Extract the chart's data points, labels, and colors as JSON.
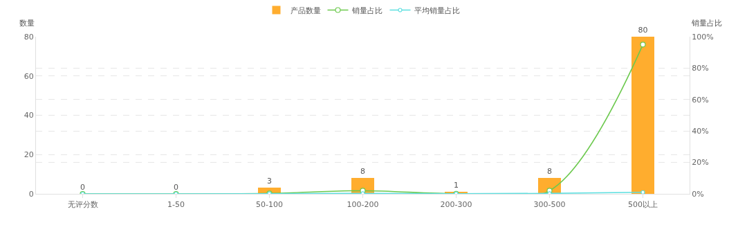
{
  "chart_data": {
    "type": "bar",
    "ylabel": "数量",
    "y2label": "销量占比",
    "categories": [
      "无评分数",
      "1-50",
      "50-100",
      "100-200",
      "200-300",
      "300-500",
      "500以上"
    ],
    "series": [
      {
        "name": "产品数量",
        "color": "#ffad2e",
        "values": [
          0,
          0,
          3,
          8,
          1,
          8,
          80
        ],
        "value_labels": [
          "0",
          "0",
          "3",
          "8",
          "1",
          "8",
          "80"
        ]
      },
      {
        "name": "销量占比",
        "type": "line",
        "axis": "y2",
        "color": "#6cc94e",
        "marker": "circle",
        "values": [
          0,
          0,
          0.3,
          2,
          0.1,
          2,
          95
        ]
      },
      {
        "name": "平均销量占比",
        "type": "line",
        "axis": "y2",
        "color": "#5ddfe0",
        "marker": "circle",
        "values": [
          0,
          0,
          0.1,
          0.3,
          0.1,
          0.3,
          1
        ]
      }
    ],
    "ylim": [
      0,
      80
    ],
    "yticks": [
      0,
      20,
      40,
      60,
      80
    ],
    "y2lim": [
      0,
      100
    ],
    "y2ticks": [
      {
        "value": 0,
        "label": "0%"
      },
      {
        "value": 20,
        "label": "20%"
      },
      {
        "value": 40,
        "label": "40%"
      },
      {
        "value": 60,
        "label": "60%"
      },
      {
        "value": 80,
        "label": "80%"
      },
      {
        "value": 100,
        "label": "100%"
      }
    ],
    "grid": true,
    "legend": "top"
  }
}
